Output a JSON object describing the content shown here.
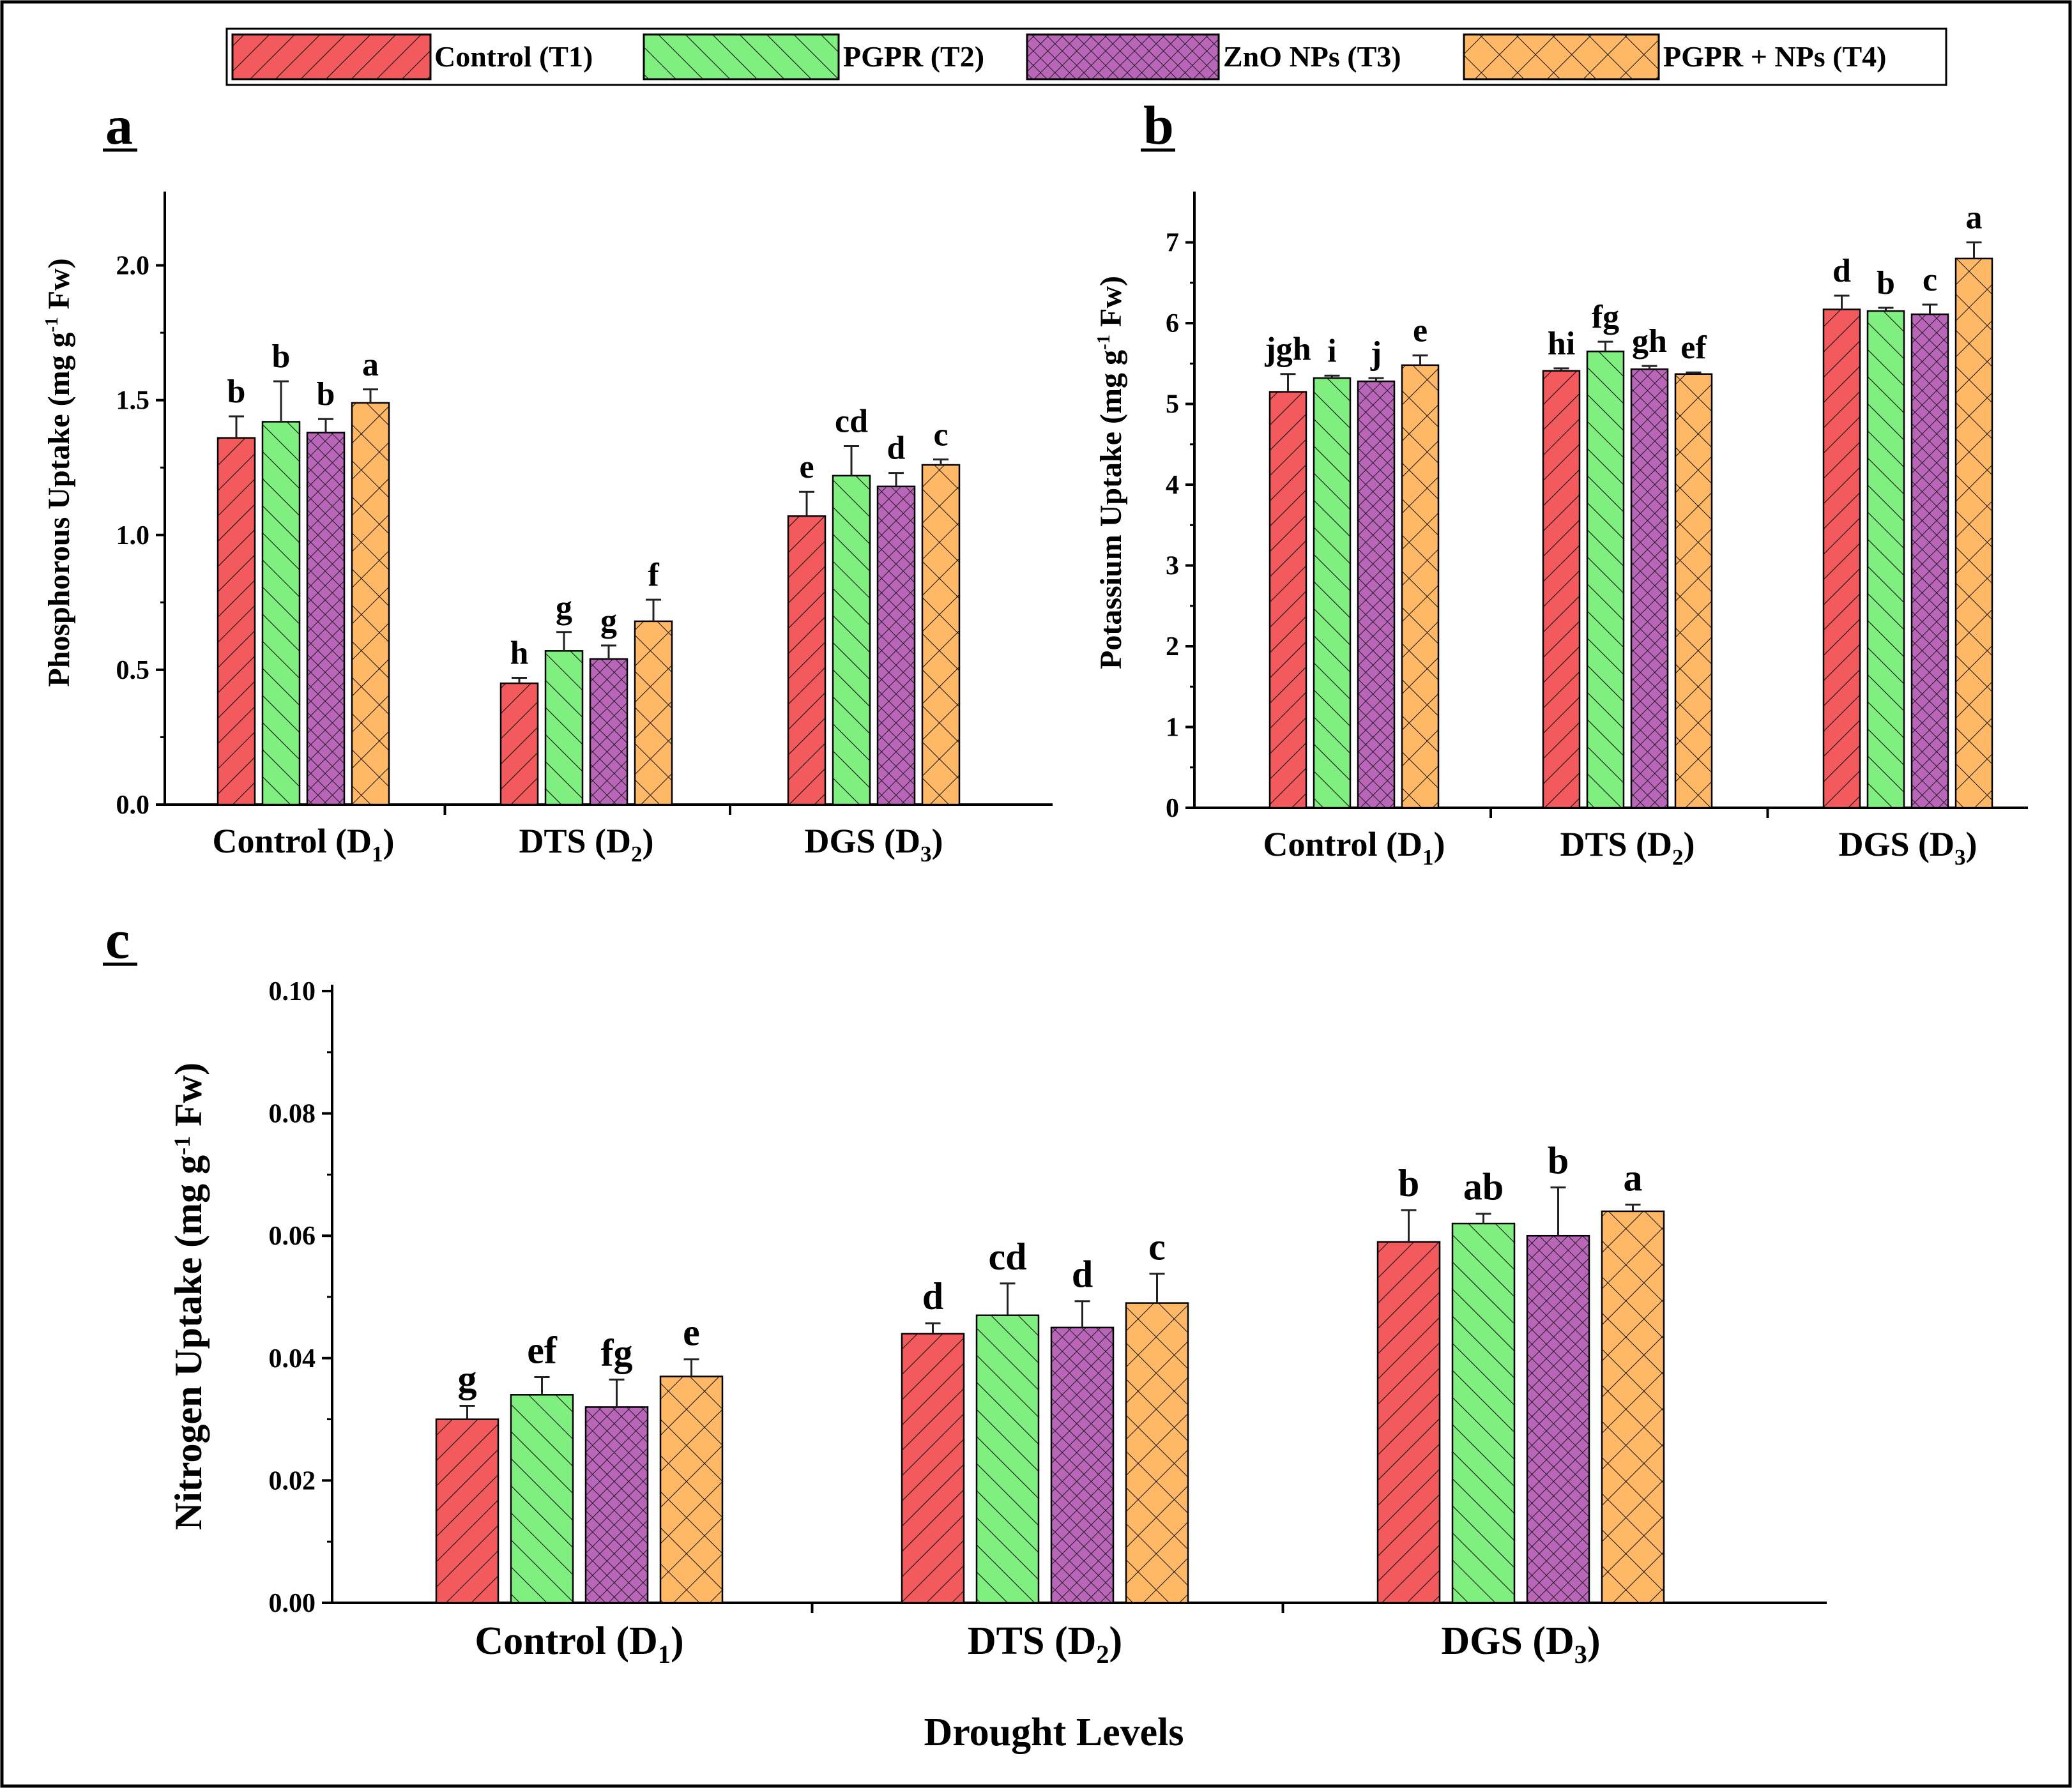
{
  "legend": [
    {
      "label": "Control (T1)",
      "color": "#f25a5e",
      "hatch": "fwd-diag"
    },
    {
      "label": "PGPR (T2)",
      "color": "#7ff07f",
      "hatch": "back-diag"
    },
    {
      "label": "ZnO NPs (T3)",
      "color": "#b966b9",
      "hatch": "crosshatch"
    },
    {
      "label": "PGPR + NPs (T4)",
      "color": "#ffb866",
      "hatch": "wide-cross"
    }
  ],
  "x_title": "Drought Levels",
  "chart_data": [
    {
      "panel": "a",
      "type": "bar",
      "ylabel": "Phosphorous Uptake (mg g-1 Fw)",
      "ylabel_parts": {
        "before": "Phosphorous Uptake (mg g",
        "sup": "-1",
        "after": " Fw)"
      },
      "ylim": [
        0,
        2.25
      ],
      "yticks": [
        "0.0",
        "0.5",
        "1.0",
        "1.5",
        "2.0"
      ],
      "categories": [
        {
          "main": "Control (D",
          "sub": "1",
          "close": ")"
        },
        {
          "main": "DTS (D",
          "sub": "2",
          "close": ")"
        },
        {
          "main": "DGS (D",
          "sub": "3",
          "close": ")"
        }
      ],
      "series": [
        {
          "name": "Control (T1)",
          "values": [
            1.36,
            0.45,
            1.07
          ],
          "errors": [
            0.08,
            0.02,
            0.09
          ],
          "letters": [
            "b",
            "h",
            "e"
          ]
        },
        {
          "name": "PGPR (T2)",
          "values": [
            1.42,
            0.57,
            1.22
          ],
          "errors": [
            0.15,
            0.07,
            0.11
          ],
          "letters": [
            "b",
            "g",
            "cd"
          ]
        },
        {
          "name": "ZnO NPs (T3)",
          "values": [
            1.38,
            0.54,
            1.18
          ],
          "errors": [
            0.05,
            0.05,
            0.05
          ],
          "letters": [
            "b",
            "g",
            "d"
          ]
        },
        {
          "name": "PGPR + NPs (T4)",
          "values": [
            1.49,
            0.68,
            1.26
          ],
          "errors": [
            0.05,
            0.08,
            0.02
          ],
          "letters": [
            "a",
            "f",
            "c"
          ]
        }
      ]
    },
    {
      "panel": "b",
      "type": "bar",
      "ylabel": "Potassium Uptake (mg g-1 Fw)",
      "ylabel_parts": {
        "before": "Potassium Uptake (mg g",
        "sup": "-1",
        "after": " Fw)"
      },
      "ylim": [
        0,
        7.55
      ],
      "yticks": [
        "0",
        "1",
        "2",
        "3",
        "4",
        "5",
        "6",
        "7"
      ],
      "categories": [
        {
          "main": "Control (D",
          "sub": "1",
          "close": ")"
        },
        {
          "main": "DTS (D",
          "sub": "2",
          "close": ")"
        },
        {
          "main": "DGS (D",
          "sub": "3",
          "close": ")"
        }
      ],
      "series": [
        {
          "name": "Control (T1)",
          "values": [
            5.15,
            5.41,
            6.17
          ],
          "errors": [
            0.22,
            0.03,
            0.17
          ],
          "letters": [
            "jgh",
            "hi",
            "d"
          ]
        },
        {
          "name": "PGPR (T2)",
          "values": [
            5.32,
            5.65,
            6.15
          ],
          "errors": [
            0.03,
            0.12,
            0.04
          ],
          "letters": [
            "i",
            "fg",
            "b"
          ]
        },
        {
          "name": "ZnO NPs (T3)",
          "values": [
            5.28,
            5.43,
            6.11
          ],
          "errors": [
            0.04,
            0.04,
            0.12
          ],
          "letters": [
            "j",
            "gh",
            "c"
          ]
        },
        {
          "name": "PGPR + NPs (T4)",
          "values": [
            5.48,
            5.37,
            6.8
          ],
          "errors": [
            0.12,
            0.02,
            0.2
          ],
          "letters": [
            "e",
            "ef",
            "a"
          ]
        }
      ]
    },
    {
      "panel": "c",
      "type": "bar",
      "ylabel": "Nitrogen Uptake (mg g-1 Fw)",
      "ylabel_parts": {
        "before": "Nitrogen Uptake (mg g",
        "sup": "-1",
        "after": " Fw)"
      },
      "ylim": [
        0,
        0.1
      ],
      "yticks": [
        "0.00",
        "0.02",
        "0.04",
        "0.06",
        "0.08",
        "0.10"
      ],
      "categories": [
        {
          "main": "Control (D",
          "sub": "1",
          "close": ")"
        },
        {
          "main": "DTS (D",
          "sub": "2",
          "close": ")"
        },
        {
          "main": "DGS (D",
          "sub": "3",
          "close": ")"
        }
      ],
      "series": [
        {
          "name": "Control (T1)",
          "values": [
            0.03,
            0.044,
            0.059
          ],
          "errors": [
            0.0022,
            0.0017,
            0.0052
          ],
          "letters": [
            "g",
            "d",
            "b"
          ]
        },
        {
          "name": "PGPR (T2)",
          "values": [
            0.034,
            0.047,
            0.062
          ],
          "errors": [
            0.0029,
            0.0052,
            0.0016
          ],
          "letters": [
            "ef",
            "cd",
            "ab"
          ]
        },
        {
          "name": "ZnO NPs (T3)",
          "values": [
            0.032,
            0.045,
            0.06
          ],
          "errors": [
            0.0045,
            0.0043,
            0.0079
          ],
          "letters": [
            "fg",
            "d",
            "b"
          ]
        },
        {
          "name": "PGPR + NPs (T4)",
          "values": [
            0.037,
            0.049,
            0.064
          ],
          "errors": [
            0.0028,
            0.0048,
            0.0011
          ],
          "letters": [
            "e",
            "c",
            "a"
          ]
        }
      ]
    }
  ]
}
